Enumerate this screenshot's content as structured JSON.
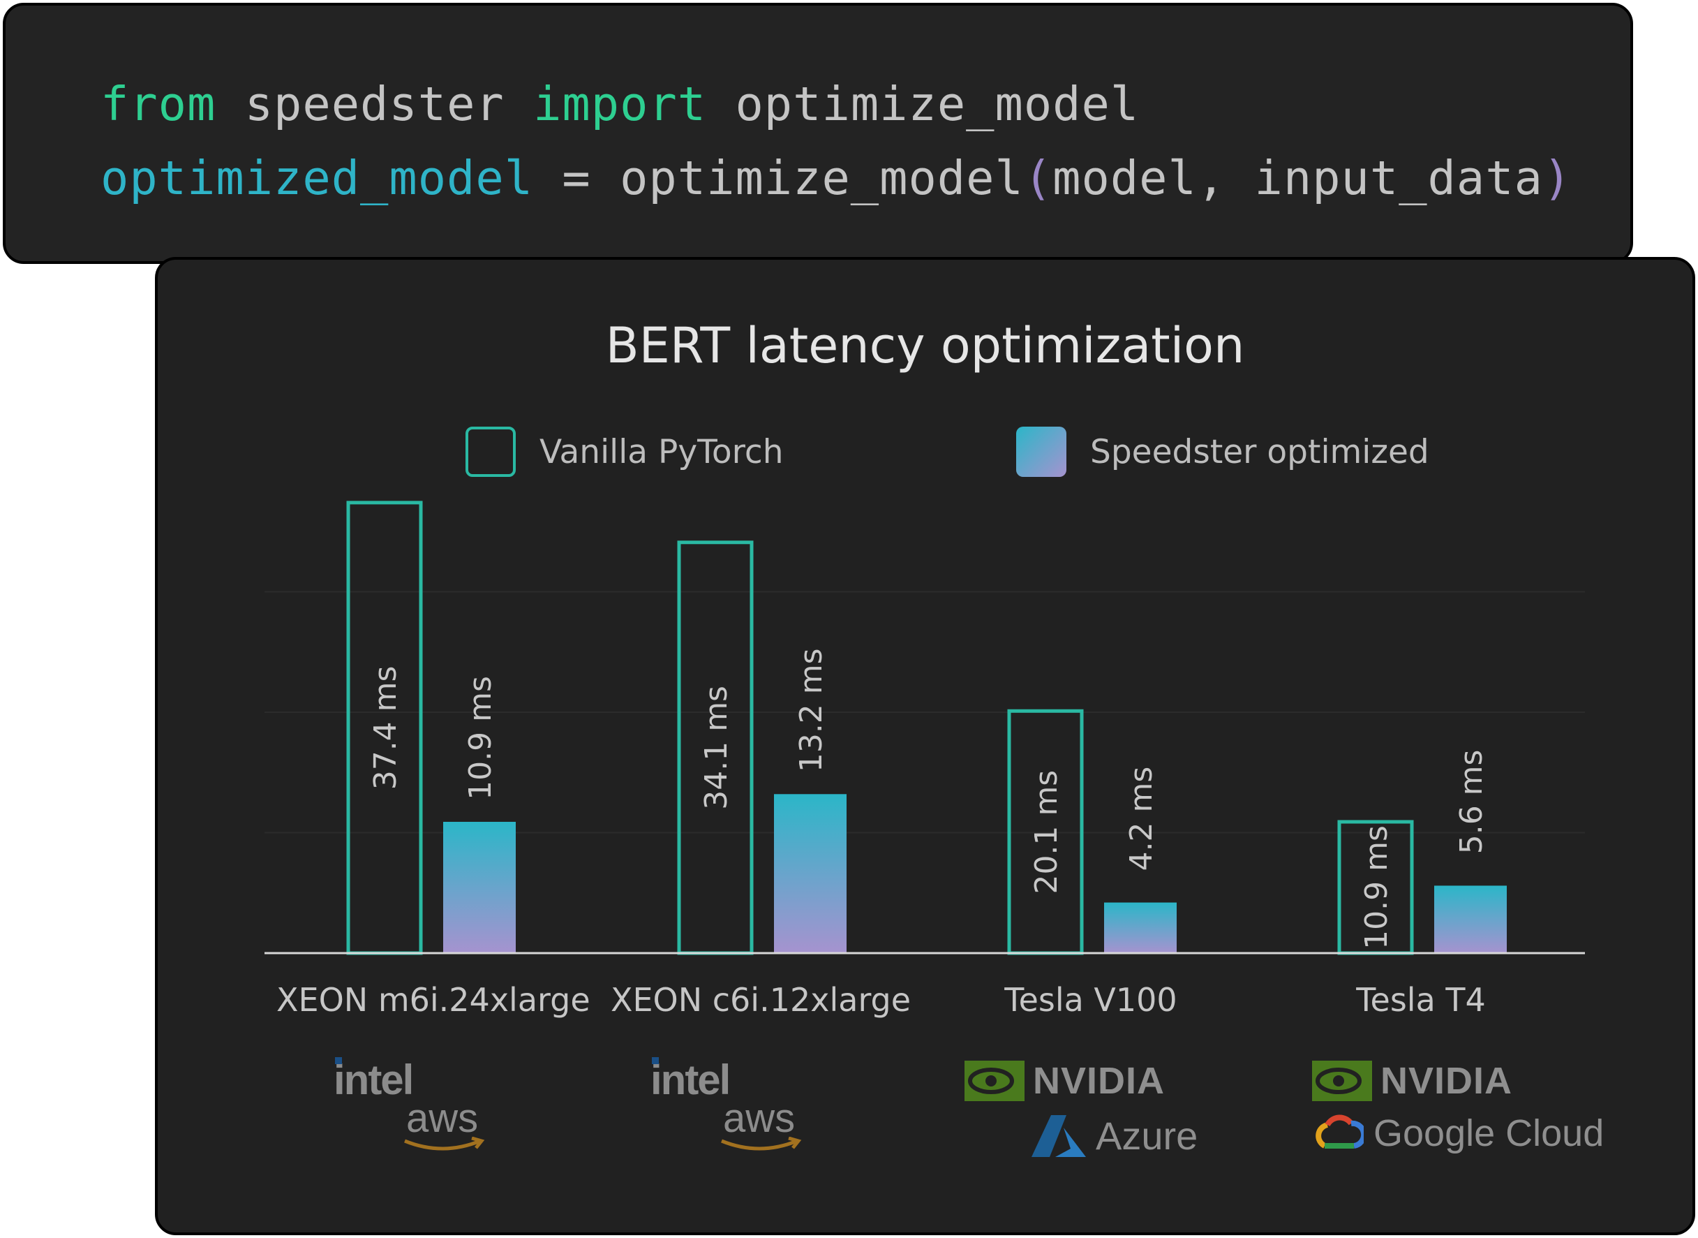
{
  "code": {
    "line1": {
      "kw1": "from",
      "mod": "speedster",
      "kw2": "import",
      "fn": "optimize_model"
    },
    "line2": {
      "var": "optimized_model",
      "eq": "=",
      "call": "optimize_model",
      "lparen": "(",
      "args": "model, input_data",
      "rparen": ")"
    }
  },
  "chart_data": {
    "type": "bar",
    "title": "BERT latency optimization",
    "categories": [
      "XEON m6i.24xlarge",
      "XEON c6i.12xlarge",
      "Tesla V100",
      "Tesla T4"
    ],
    "series": [
      {
        "name": "Vanilla PyTorch",
        "values": [
          37.4,
          34.1,
          20.1,
          10.9
        ],
        "labels": [
          "37.4 ms",
          "34.1 ms",
          "20.1 ms",
          "10.9 ms"
        ],
        "style": "outline",
        "color": "#2ab9a3"
      },
      {
        "name": "Speedster optimized",
        "values": [
          10.9,
          13.2,
          4.2,
          5.6
        ],
        "labels": [
          "10.9 ms",
          "13.2 ms",
          "4.2 ms",
          "5.6 ms"
        ],
        "style": "gradient",
        "color_top": "#2bb6c8",
        "color_bottom": "#a693cf"
      }
    ],
    "ylim": [
      0,
      40
    ],
    "grid": true,
    "legend": "top"
  },
  "vendors": [
    {
      "chip": "intel",
      "cloud": "aws"
    },
    {
      "chip": "intel",
      "cloud": "aws"
    },
    {
      "chip": "NVIDIA",
      "cloud": "Azure"
    },
    {
      "chip": "NVIDIA",
      "cloud": "Google Cloud"
    }
  ],
  "colors": {
    "background": "#212121",
    "code_bg": "#232323",
    "accent_green": "#2ecf91",
    "accent_cyan": "#2fb4c8",
    "accent_purple": "#9a86c6"
  }
}
